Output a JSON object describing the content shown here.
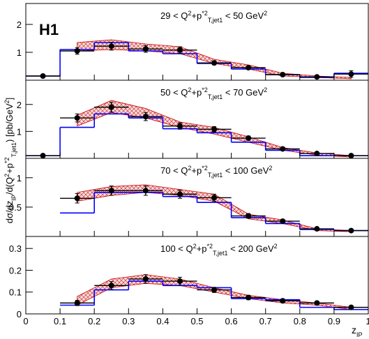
{
  "experiment": "H1",
  "ylabel": [
    {
      "text": "dσ/dz"
    },
    {
      "text": "IP",
      "pos": "sub"
    },
    {
      "text": "/d(Q"
    },
    {
      "text": "2",
      "pos": "sup"
    },
    {
      "text": "+p"
    },
    {
      "text": "*2",
      "pos": "sup"
    },
    {
      "text": "T,jet1",
      "pos": "sub"
    },
    {
      "text": ")  [pb/GeV"
    },
    {
      "text": "2",
      "pos": "sup"
    },
    {
      "text": "]"
    }
  ],
  "xlabel": [
    {
      "text": "z"
    },
    {
      "text": "IP",
      "pos": "sub"
    }
  ],
  "chart_data": [
    {
      "type": "step",
      "title": [
        {
          "text": "29  <  Q"
        },
        {
          "text": "2",
          "pos": "sup"
        },
        {
          "text": "+p"
        },
        {
          "text": "*2",
          "pos": "sup"
        },
        {
          "text": "T,jet1",
          "pos": "sub"
        },
        {
          "text": "  <   50 GeV"
        },
        {
          "text": "2",
          "pos": "sup"
        }
      ],
      "bins": [
        0,
        0.1,
        0.2,
        0.3,
        0.4,
        0.5,
        0.6,
        0.7,
        0.8,
        0.9,
        1.0
      ],
      "x": [
        0.05,
        0.15,
        0.25,
        0.35,
        0.45,
        0.55,
        0.65,
        0.75,
        0.85,
        0.95
      ],
      "values": [
        0.15,
        1.05,
        1.22,
        1.12,
        1.08,
        0.62,
        0.45,
        0.2,
        0.12,
        0.22
      ],
      "errors": [
        0.03,
        0.12,
        0.14,
        0.12,
        0.12,
        0.07,
        0.06,
        0.04,
        0.04,
        0.12
      ],
      "color": "#000000",
      "mc": {
        "color": "#0000ff",
        "values": [
          0.15,
          1.1,
          1.35,
          1.05,
          0.95,
          0.6,
          0.4,
          0.2,
          0.1,
          0.25
        ]
      },
      "band": {
        "color": "#cc0000",
        "low": [
          null,
          1.05,
          1.1,
          1.05,
          0.95,
          0.6,
          0.4,
          0.15,
          0.1,
          0.05
        ],
        "high": [
          null,
          1.35,
          1.45,
          1.3,
          1.2,
          0.75,
          0.55,
          0.25,
          0.15,
          0.1
        ]
      },
      "ylim": [
        0,
        2.75
      ],
      "yticks": [
        1,
        2
      ]
    },
    {
      "type": "step",
      "title": [
        {
          "text": "50  <  Q"
        },
        {
          "text": "2",
          "pos": "sup"
        },
        {
          "text": "+p"
        },
        {
          "text": "*2",
          "pos": "sup"
        },
        {
          "text": "T,jet1",
          "pos": "sub"
        },
        {
          "text": "  <   70 GeV"
        },
        {
          "text": "2",
          "pos": "sup"
        }
      ],
      "bins": [
        0,
        0.1,
        0.2,
        0.3,
        0.4,
        0.5,
        0.6,
        0.7,
        0.8,
        0.9,
        1.0
      ],
      "x": [
        0.05,
        0.15,
        0.25,
        0.35,
        0.45,
        0.55,
        0.65,
        0.75,
        0.85,
        0.95
      ],
      "values": [
        0.1,
        1.5,
        1.9,
        1.55,
        1.2,
        1.08,
        0.75,
        0.35,
        0.18,
        0.1
      ],
      "errors": [
        0.03,
        0.15,
        0.18,
        0.15,
        0.12,
        0.1,
        0.08,
        0.05,
        0.04,
        0.03
      ],
      "color": "#000000",
      "mc": {
        "color": "#0000ff",
        "values": [
          0.1,
          1.15,
          1.65,
          1.5,
          1.1,
          0.95,
          0.6,
          0.3,
          0.1,
          0.1
        ]
      },
      "band": {
        "color": "#cc0000",
        "low": [
          null,
          1.2,
          1.7,
          1.5,
          1.15,
          0.9,
          0.6,
          0.3,
          0.12,
          0.05
        ],
        "high": [
          null,
          1.6,
          2.15,
          1.85,
          1.35,
          1.15,
          0.8,
          0.4,
          0.2,
          0.1
        ]
      },
      "ylim": [
        0,
        2.9
      ],
      "yticks": [
        1,
        2
      ]
    },
    {
      "type": "step",
      "title": [
        {
          "text": "70  <  Q"
        },
        {
          "text": "2",
          "pos": "sup"
        },
        {
          "text": "+p"
        },
        {
          "text": "*2",
          "pos": "sup"
        },
        {
          "text": "T,jet1",
          "pos": "sub"
        },
        {
          "text": "  <   100 GeV"
        },
        {
          "text": "2",
          "pos": "sup"
        }
      ],
      "bins": [
        0.1,
        0.2,
        0.3,
        0.4,
        0.5,
        0.6,
        0.7,
        0.8,
        0.9,
        1.0
      ],
      "x": [
        0.15,
        0.25,
        0.35,
        0.45,
        0.55,
        0.65,
        0.75,
        0.85,
        0.95
      ],
      "values": [
        0.65,
        0.78,
        0.78,
        0.72,
        0.66,
        0.35,
        0.26,
        0.13,
        0.1
      ],
      "errors": [
        0.08,
        0.08,
        0.08,
        0.07,
        0.06,
        0.04,
        0.03,
        0.02,
        0.02
      ],
      "color": "#000000",
      "mc": {
        "color": "#0000ff",
        "values": [
          0.4,
          0.75,
          0.75,
          0.68,
          0.58,
          0.32,
          0.22,
          0.12,
          0.1
        ]
      },
      "band": {
        "color": "#cc0000",
        "low": [
          0.6,
          0.7,
          0.75,
          0.7,
          0.6,
          0.3,
          0.22,
          0.1,
          0.08
        ],
        "high": [
          0.75,
          0.85,
          0.88,
          0.8,
          0.72,
          0.38,
          0.28,
          0.13,
          0.1
        ]
      },
      "ylim": [
        0,
        1.33
      ],
      "yticks": [
        0.5,
        1
      ]
    },
    {
      "type": "step",
      "title": [
        {
          "text": "100  <  Q"
        },
        {
          "text": "2",
          "pos": "sup"
        },
        {
          "text": "+p"
        },
        {
          "text": "*2",
          "pos": "sup"
        },
        {
          "text": "T,jet1",
          "pos": "sub"
        },
        {
          "text": "  <  200 GeV"
        },
        {
          "text": "2",
          "pos": "sup"
        }
      ],
      "bins": [
        0.1,
        0.2,
        0.3,
        0.4,
        0.5,
        0.6,
        0.7,
        0.8,
        0.9,
        1.0
      ],
      "x": [
        0.15,
        0.25,
        0.35,
        0.45,
        0.55,
        0.65,
        0.75,
        0.85,
        0.95
      ],
      "values": [
        0.05,
        0.13,
        0.16,
        0.15,
        0.11,
        0.075,
        0.06,
        0.05,
        0.03
      ],
      "errors": [
        0.012,
        0.018,
        0.02,
        0.018,
        0.012,
        0.01,
        0.008,
        0.008,
        0.006
      ],
      "color": "#000000",
      "mc": {
        "color": "#0000ff",
        "values": [
          0.04,
          0.11,
          0.15,
          0.13,
          0.12,
          0.07,
          0.065,
          0.03,
          0.02
        ]
      },
      "band": {
        "color": "#cc0000",
        "low": [
          0.04,
          0.12,
          0.14,
          0.13,
          0.1,
          0.07,
          0.05,
          0.04,
          0.02
        ],
        "high": [
          0.08,
          0.16,
          0.18,
          0.16,
          0.12,
          0.085,
          0.065,
          0.05,
          0.03
        ]
      },
      "ylim": [
        0,
        0.355
      ],
      "yticks": [
        0,
        0.1,
        0.2,
        0.3
      ],
      "xlim": [
        0,
        1
      ],
      "xticks": [
        0,
        0.1,
        0.2,
        0.3,
        0.4,
        0.5,
        0.6,
        0.7,
        0.8,
        0.9,
        1
      ]
    }
  ]
}
